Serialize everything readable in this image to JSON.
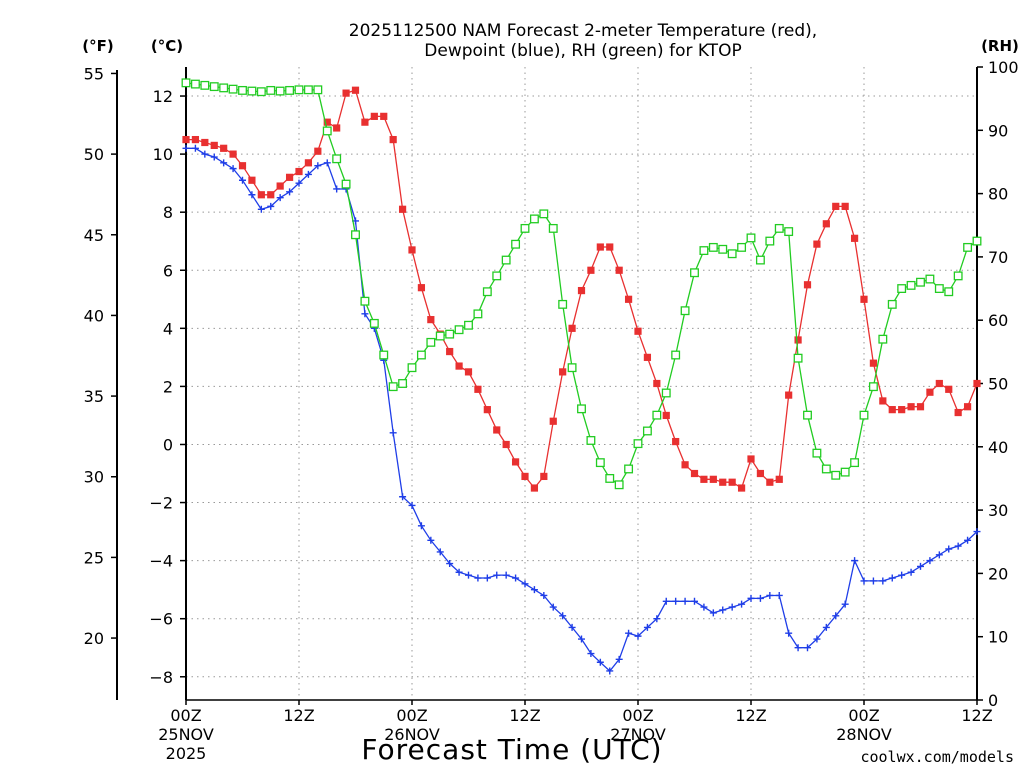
{
  "chart_data": {
    "type": "line",
    "title": "2025112500 NAM Forecast 2-meter Temperature (red),",
    "subtitle": "Dewpoint (blue), RH (green) for KTOP",
    "xlabel": "Forecast Time (UTC)",
    "credit": "coolwx.com/models",
    "units": {
      "fahrenheit": "(°F)",
      "celsius": "(°C)",
      "rh": "(RH)"
    },
    "x_range_hours": [
      0,
      84
    ],
    "x_ticks": [
      {
        "hour": 0,
        "label": "00Z",
        "date": "25NOV",
        "year": "2025"
      },
      {
        "hour": 12,
        "label": "12Z"
      },
      {
        "hour": 24,
        "label": "00Z",
        "date": "26NOV"
      },
      {
        "hour": 36,
        "label": "12Z"
      },
      {
        "hour": 48,
        "label": "00Z",
        "date": "27NOV"
      },
      {
        "hour": 60,
        "label": "12Z"
      },
      {
        "hour": 72,
        "label": "00Z",
        "date": "28NOV"
      },
      {
        "hour": 84,
        "label": "12Z"
      }
    ],
    "celsius_axis": {
      "ylim": [
        -8.8,
        13.0
      ],
      "ticks": [
        12,
        10,
        8,
        6,
        4,
        2,
        0,
        -2,
        -4,
        -6,
        -8
      ]
    },
    "fahrenheit_axis": {
      "ticks": [
        55,
        50,
        45,
        40,
        35,
        30,
        25,
        20
      ]
    },
    "rh_axis": {
      "ylim": [
        0,
        100
      ],
      "ticks": [
        100,
        90,
        80,
        70,
        60,
        50,
        40,
        30,
        20,
        10,
        0
      ]
    },
    "series": [
      {
        "name": "2-meter Temperature",
        "color": "#e83030",
        "marker": "filled-square",
        "axis": "celsius",
        "points": [
          [
            0,
            10.5
          ],
          [
            1,
            10.5
          ],
          [
            2,
            10.4
          ],
          [
            3,
            10.3
          ],
          [
            4,
            10.2
          ],
          [
            5,
            10.0
          ],
          [
            6,
            9.6
          ],
          [
            7,
            9.1
          ],
          [
            8,
            8.6
          ],
          [
            9,
            8.6
          ],
          [
            10,
            8.9
          ],
          [
            11,
            9.2
          ],
          [
            12,
            9.4
          ],
          [
            13,
            9.7
          ],
          [
            14,
            10.1
          ],
          [
            15,
            11.1
          ],
          [
            16,
            10.9
          ],
          [
            17,
            12.1
          ],
          [
            18,
            12.2
          ],
          [
            19,
            11.1
          ],
          [
            20,
            11.3
          ],
          [
            21,
            11.3
          ],
          [
            22,
            10.5
          ],
          [
            23,
            8.1
          ],
          [
            24,
            6.7
          ],
          [
            25,
            5.4
          ],
          [
            26,
            4.3
          ],
          [
            27,
            3.8
          ],
          [
            28,
            3.2
          ],
          [
            29,
            2.7
          ],
          [
            30,
            2.5
          ],
          [
            31,
            1.9
          ],
          [
            32,
            1.2
          ],
          [
            33,
            0.5
          ],
          [
            34,
            0.0
          ],
          [
            35,
            -0.6
          ],
          [
            36,
            -1.1
          ],
          [
            37,
            -1.5
          ],
          [
            38,
            -1.1
          ],
          [
            39,
            0.8
          ],
          [
            40,
            2.5
          ],
          [
            41,
            4.0
          ],
          [
            42,
            5.3
          ],
          [
            43,
            6.0
          ],
          [
            44,
            6.8
          ],
          [
            45,
            6.8
          ],
          [
            46,
            6.0
          ],
          [
            47,
            5.0
          ],
          [
            48,
            3.9
          ],
          [
            49,
            3.0
          ],
          [
            50,
            2.1
          ],
          [
            51,
            1.0
          ],
          [
            52,
            0.1
          ],
          [
            53,
            -0.7
          ],
          [
            54,
            -1.0
          ],
          [
            55,
            -1.2
          ],
          [
            56,
            -1.2
          ],
          [
            57,
            -1.3
          ],
          [
            58,
            -1.3
          ],
          [
            59,
            -1.5
          ],
          [
            60,
            -0.5
          ],
          [
            61,
            -1.0
          ],
          [
            62,
            -1.3
          ],
          [
            63,
            -1.2
          ],
          [
            64,
            1.7
          ],
          [
            65,
            3.6
          ],
          [
            66,
            5.5
          ],
          [
            67,
            6.9
          ],
          [
            68,
            7.6
          ],
          [
            69,
            8.2
          ],
          [
            70,
            8.2
          ],
          [
            71,
            7.1
          ],
          [
            72,
            5.0
          ],
          [
            73,
            2.8
          ],
          [
            74,
            1.5
          ],
          [
            75,
            1.2
          ],
          [
            76,
            1.2
          ],
          [
            77,
            1.3
          ],
          [
            78,
            1.3
          ],
          [
            79,
            1.8
          ],
          [
            80,
            2.1
          ],
          [
            81,
            1.9
          ],
          [
            82,
            1.1
          ],
          [
            83,
            1.3
          ],
          [
            84,
            2.1
          ]
        ]
      },
      {
        "name": "Dewpoint",
        "color": "#1f3ee8",
        "marker": "plus",
        "axis": "celsius",
        "points": [
          [
            0,
            10.2
          ],
          [
            1,
            10.2
          ],
          [
            2,
            10.0
          ],
          [
            3,
            9.9
          ],
          [
            4,
            9.7
          ],
          [
            5,
            9.5
          ],
          [
            6,
            9.1
          ],
          [
            7,
            8.6
          ],
          [
            8,
            8.1
          ],
          [
            9,
            8.2
          ],
          [
            10,
            8.5
          ],
          [
            11,
            8.7
          ],
          [
            12,
            9.0
          ],
          [
            13,
            9.3
          ],
          [
            14,
            9.6
          ],
          [
            15,
            9.7
          ],
          [
            16,
            8.8
          ],
          [
            17,
            8.8
          ],
          [
            18,
            7.7
          ],
          [
            19,
            4.5
          ],
          [
            20,
            4.0
          ],
          [
            21,
            2.9
          ],
          [
            22,
            0.4
          ],
          [
            23,
            -1.8
          ],
          [
            24,
            -2.1
          ],
          [
            25,
            -2.8
          ],
          [
            26,
            -3.3
          ],
          [
            27,
            -3.7
          ],
          [
            28,
            -4.1
          ],
          [
            29,
            -4.4
          ],
          [
            30,
            -4.5
          ],
          [
            31,
            -4.6
          ],
          [
            32,
            -4.6
          ],
          [
            33,
            -4.5
          ],
          [
            34,
            -4.5
          ],
          [
            35,
            -4.6
          ],
          [
            36,
            -4.8
          ],
          [
            37,
            -5.0
          ],
          [
            38,
            -5.2
          ],
          [
            39,
            -5.6
          ],
          [
            40,
            -5.9
          ],
          [
            41,
            -6.3
          ],
          [
            42,
            -6.7
          ],
          [
            43,
            -7.2
          ],
          [
            44,
            -7.5
          ],
          [
            45,
            -7.8
          ],
          [
            46,
            -7.4
          ],
          [
            47,
            -6.5
          ],
          [
            48,
            -6.6
          ],
          [
            49,
            -6.3
          ],
          [
            50,
            -6.0
          ],
          [
            51,
            -5.4
          ],
          [
            52,
            -5.4
          ],
          [
            53,
            -5.4
          ],
          [
            54,
            -5.4
          ],
          [
            55,
            -5.6
          ],
          [
            56,
            -5.8
          ],
          [
            57,
            -5.7
          ],
          [
            58,
            -5.6
          ],
          [
            59,
            -5.5
          ],
          [
            60,
            -5.3
          ],
          [
            61,
            -5.3
          ],
          [
            62,
            -5.2
          ],
          [
            63,
            -5.2
          ],
          [
            64,
            -6.5
          ],
          [
            65,
            -7.0
          ],
          [
            66,
            -7.0
          ],
          [
            67,
            -6.7
          ],
          [
            68,
            -6.3
          ],
          [
            69,
            -5.9
          ],
          [
            70,
            -5.5
          ],
          [
            71,
            -4.0
          ],
          [
            72,
            -4.7
          ],
          [
            73,
            -4.7
          ],
          [
            74,
            -4.7
          ],
          [
            75,
            -4.6
          ],
          [
            76,
            -4.5
          ],
          [
            77,
            -4.4
          ],
          [
            78,
            -4.2
          ],
          [
            79,
            -4.0
          ],
          [
            80,
            -3.8
          ],
          [
            81,
            -3.6
          ],
          [
            82,
            -3.5
          ],
          [
            83,
            -3.3
          ],
          [
            84,
            -3.0
          ]
        ]
      },
      {
        "name": "RH",
        "color": "#22cc22",
        "marker": "open-square",
        "axis": "rh",
        "points": [
          [
            0,
            97.5
          ],
          [
            1,
            97.3
          ],
          [
            2,
            97.1
          ],
          [
            3,
            96.9
          ],
          [
            4,
            96.7
          ],
          [
            5,
            96.5
          ],
          [
            6,
            96.3
          ],
          [
            7,
            96.2
          ],
          [
            8,
            96.1
          ],
          [
            9,
            96.3
          ],
          [
            10,
            96.2
          ],
          [
            11,
            96.3
          ],
          [
            12,
            96.4
          ],
          [
            13,
            96.4
          ],
          [
            14,
            96.4
          ],
          [
            15,
            89.9
          ],
          [
            16,
            85.5
          ],
          [
            17,
            81.5
          ],
          [
            18,
            73.5
          ],
          [
            19,
            63.0
          ],
          [
            20,
            59.5
          ],
          [
            21,
            54.5
          ],
          [
            22,
            49.5
          ],
          [
            23,
            50.0
          ],
          [
            24,
            52.5
          ],
          [
            25,
            54.5
          ],
          [
            26,
            56.5
          ],
          [
            27,
            57.5
          ],
          [
            28,
            57.8
          ],
          [
            29,
            58.5
          ],
          [
            30,
            59.2
          ],
          [
            31,
            61.0
          ],
          [
            32,
            64.5
          ],
          [
            33,
            67.0
          ],
          [
            34,
            69.5
          ],
          [
            35,
            72.0
          ],
          [
            36,
            74.5
          ],
          [
            37,
            76.0
          ],
          [
            38,
            76.8
          ],
          [
            39,
            74.5
          ],
          [
            40,
            62.5
          ],
          [
            41,
            52.5
          ],
          [
            42,
            46.0
          ],
          [
            43,
            41.0
          ],
          [
            44,
            37.5
          ],
          [
            45,
            35.0
          ],
          [
            46,
            34.0
          ],
          [
            47,
            36.5
          ],
          [
            48,
            40.5
          ],
          [
            49,
            42.5
          ],
          [
            50,
            45.0
          ],
          [
            51,
            48.5
          ],
          [
            52,
            54.5
          ],
          [
            53,
            61.5
          ],
          [
            54,
            67.5
          ],
          [
            55,
            71.0
          ],
          [
            56,
            71.5
          ],
          [
            57,
            71.2
          ],
          [
            58,
            70.5
          ],
          [
            59,
            71.5
          ],
          [
            60,
            73.0
          ],
          [
            61,
            69.5
          ],
          [
            62,
            72.5
          ],
          [
            63,
            74.5
          ],
          [
            64,
            74.0
          ],
          [
            65,
            54.0
          ],
          [
            66,
            45.0
          ],
          [
            67,
            39.0
          ],
          [
            68,
            36.5
          ],
          [
            69,
            35.5
          ],
          [
            70,
            36.0
          ],
          [
            71,
            37.5
          ],
          [
            72,
            45.0
          ],
          [
            73,
            49.5
          ],
          [
            74,
            57.0
          ],
          [
            75,
            62.5
          ],
          [
            76,
            65.0
          ],
          [
            77,
            65.5
          ],
          [
            78,
            66.0
          ],
          [
            79,
            66.5
          ],
          [
            80,
            65.0
          ],
          [
            81,
            64.5
          ],
          [
            82,
            67.0
          ],
          [
            83,
            71.5
          ],
          [
            84,
            72.5
          ]
        ]
      }
    ]
  }
}
